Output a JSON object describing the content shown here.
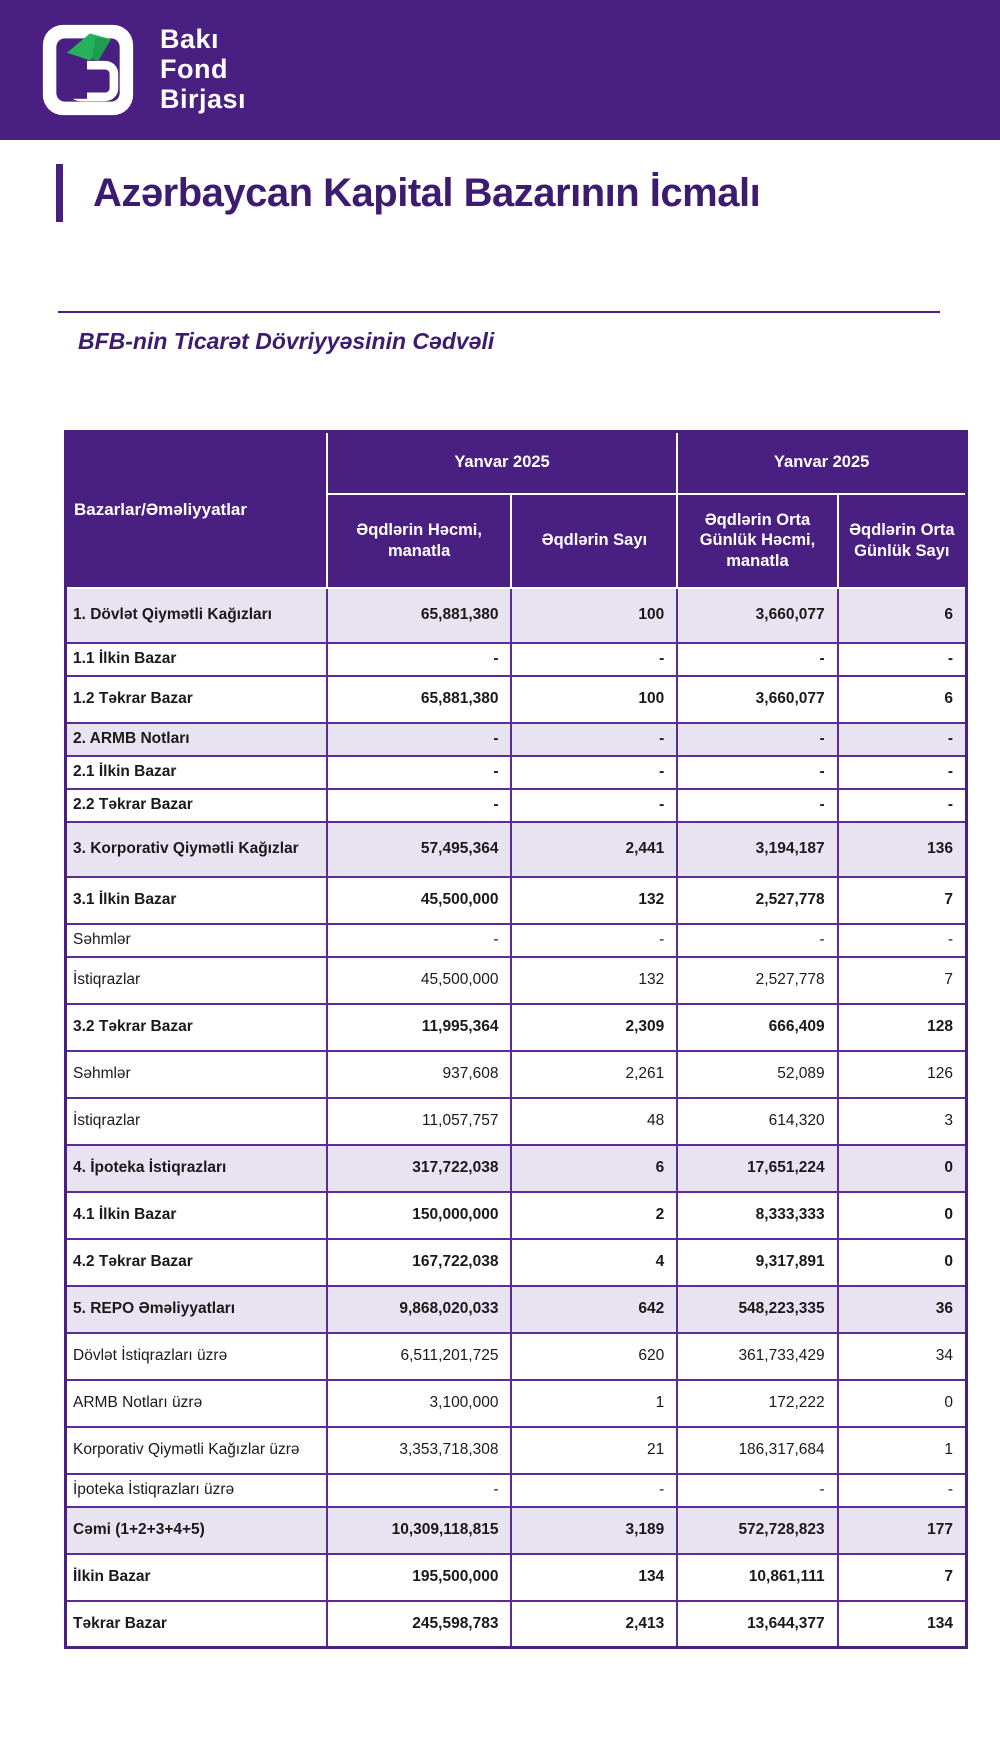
{
  "brand": {
    "wordmark_lines": [
      "Bakı",
      "Fond",
      "Birjası"
    ],
    "band_color": "#4A1F82",
    "logo_green": "#25B25B",
    "logo_white": "#FFFFFF"
  },
  "page_title": "Azərbaycan Kapital Bazarının İcmalı",
  "section_title": "BFB-nin Ticarət Dövriyyəsinin Cədvəli",
  "colors": {
    "header_purple": "#4A1F82",
    "grid_border_purple": "#5B2B96",
    "section_row_lavender": "#E8E3F0",
    "title_purple": "#3D1C70"
  },
  "table": {
    "corner_header": "Bazarlar/Əməliyyatlar",
    "period_headers": [
      "Yanvar 2025",
      "Yanvar 2025"
    ],
    "sub_headers": [
      "Əqdlərin Həcmi, manatla",
      "Əqdlərin Sayı",
      "Əqdlərin Orta Günlük Həcmi, manatla",
      "Əqdlərin Orta Günlük Sayı"
    ],
    "rows": [
      {
        "label": "1. Dövlət Qiymətli Kağızları",
        "values": [
          "65,881,380",
          "100",
          "3,660,077",
          "6"
        ],
        "style": "section"
      },
      {
        "label": "1.1 İlkin Bazar",
        "values": [
          "-",
          "-",
          "-",
          "-"
        ],
        "style": "bold"
      },
      {
        "label": "1.2 Təkrar Bazar",
        "values": [
          "65,881,380",
          "100",
          "3,660,077",
          "6"
        ],
        "style": "bold"
      },
      {
        "label": "2. ARMB Notları",
        "values": [
          "-",
          "-",
          "-",
          "-"
        ],
        "style": "section"
      },
      {
        "label": "2.1 İlkin Bazar",
        "values": [
          "-",
          "-",
          "-",
          "-"
        ],
        "style": "bold"
      },
      {
        "label": "2.2 Təkrar Bazar",
        "values": [
          "-",
          "-",
          "-",
          "-"
        ],
        "style": "bold"
      },
      {
        "label": "3. Korporativ Qiymətli Kağızlar",
        "values": [
          "57,495,364",
          "2,441",
          "3,194,187",
          "136"
        ],
        "style": "section"
      },
      {
        "label": "3.1 İlkin Bazar",
        "values": [
          "45,500,000",
          "132",
          "2,527,778",
          "7"
        ],
        "style": "bold"
      },
      {
        "label": "Səhmlər",
        "values": [
          "-",
          "-",
          "-",
          "-"
        ],
        "style": "plain"
      },
      {
        "label": "İstiqrazlar",
        "values": [
          "45,500,000",
          "132",
          "2,527,778",
          "7"
        ],
        "style": "plain"
      },
      {
        "label": "3.2 Təkrar Bazar",
        "values": [
          "11,995,364",
          "2,309",
          "666,409",
          "128"
        ],
        "style": "bold"
      },
      {
        "label": "Səhmlər",
        "values": [
          "937,608",
          "2,261",
          "52,089",
          "126"
        ],
        "style": "plain"
      },
      {
        "label": "İstiqrazlar",
        "values": [
          "11,057,757",
          "48",
          "614,320",
          "3"
        ],
        "style": "plain"
      },
      {
        "label": "4. İpoteka İstiqrazları",
        "values": [
          "317,722,038",
          "6",
          "17,651,224",
          "0"
        ],
        "style": "section"
      },
      {
        "label": "4.1 İlkin Bazar",
        "values": [
          "150,000,000",
          "2",
          "8,333,333",
          "0"
        ],
        "style": "bold"
      },
      {
        "label": "4.2 Təkrar Bazar",
        "values": [
          "167,722,038",
          "4",
          "9,317,891",
          "0"
        ],
        "style": "bold"
      },
      {
        "label": "5. REPO Əməliyyatları",
        "values": [
          "9,868,020,033",
          "642",
          "548,223,335",
          "36"
        ],
        "style": "section"
      },
      {
        "label": "Dövlət İstiqrazları üzrə",
        "values": [
          "6,511,201,725",
          "620",
          "361,733,429",
          "34"
        ],
        "style": "plain"
      },
      {
        "label": "ARMB Notları üzrə",
        "values": [
          "3,100,000",
          "1",
          "172,222",
          "0"
        ],
        "style": "plain"
      },
      {
        "label": "Korporativ Qiymətli Kağızlar üzrə",
        "values": [
          "3,353,718,308",
          "21",
          "186,317,684",
          "1"
        ],
        "style": "plain"
      },
      {
        "label": "İpoteka İstiqrazları üzrə",
        "values": [
          "-",
          "-",
          "-",
          "-"
        ],
        "style": "plain"
      },
      {
        "label": "Cəmi (1+2+3+4+5)",
        "values": [
          "10,309,118,815",
          "3,189",
          "572,728,823",
          "177"
        ],
        "style": "section"
      },
      {
        "label": "İlkin Bazar",
        "values": [
          "195,500,000",
          "134",
          "10,861,111",
          "7"
        ],
        "style": "bold"
      },
      {
        "label": "Təkrar Bazar",
        "values": [
          "245,598,783",
          "2,413",
          "13,644,377",
          "134"
        ],
        "style": "bold"
      }
    ]
  }
}
